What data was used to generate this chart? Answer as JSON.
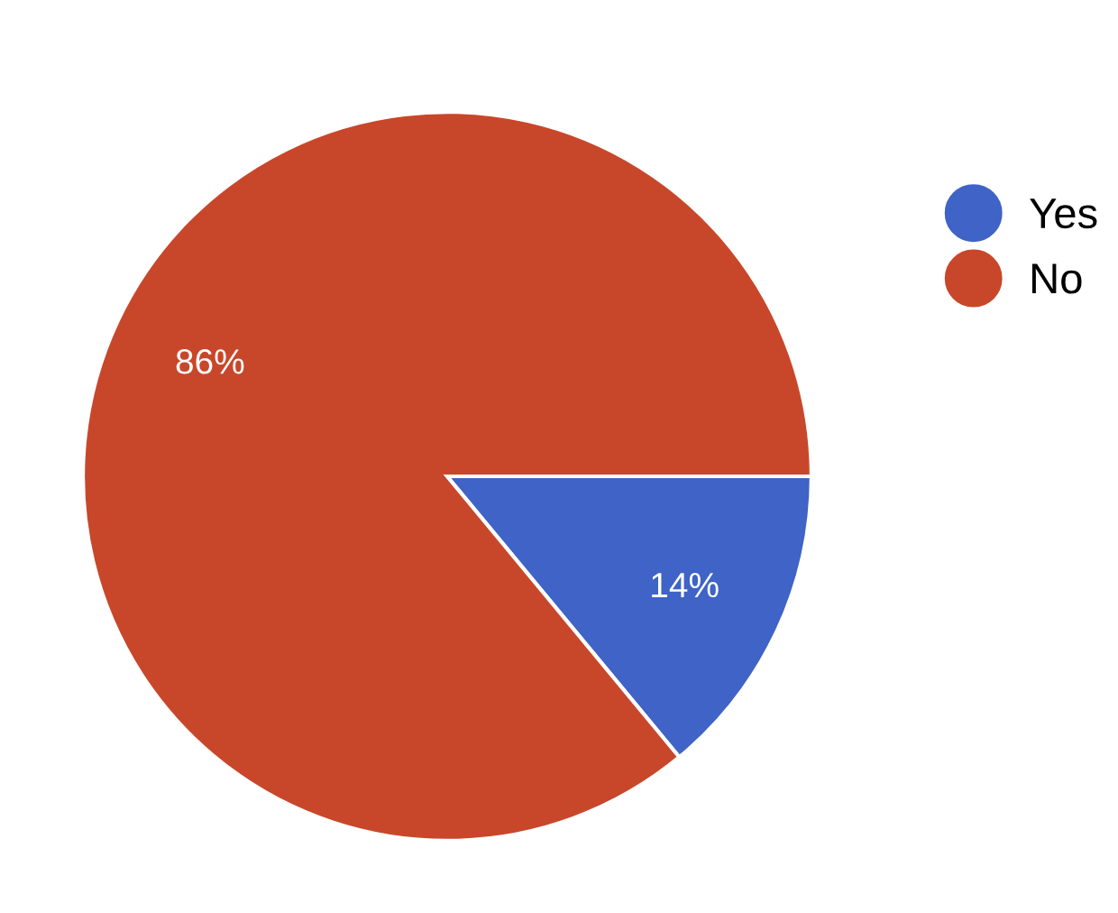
{
  "chart_data": {
    "type": "pie",
    "categories": [
      "Yes",
      "No"
    ],
    "values": [
      14,
      86
    ],
    "colors": [
      "#3f63c6",
      "#c8472a"
    ],
    "value_labels": [
      "14%",
      "86%"
    ],
    "legend": "top right"
  }
}
